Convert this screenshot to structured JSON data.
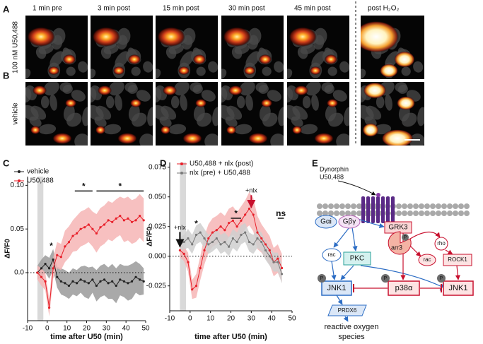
{
  "micrographs": {
    "columns": [
      "1 min pre",
      "3 min post",
      "15 min post",
      "30 min post",
      "45 min post",
      "post H₂O₂"
    ],
    "rows": [
      {
        "panel": "A",
        "label": "100 nM U50,488"
      },
      {
        "panel": "B",
        "label": "vehicle"
      }
    ]
  },
  "chart_data": [
    {
      "type": "line",
      "panel": "C",
      "xlabel": "time after U50 (min)",
      "ylabel": "ΔF/F0",
      "x": [
        -5,
        -3,
        -1,
        1,
        3,
        5,
        7,
        9,
        11,
        13,
        15,
        17,
        19,
        21,
        23,
        25,
        27,
        29,
        31,
        33,
        35,
        37,
        39,
        41,
        43,
        45,
        47,
        49
      ],
      "series": [
        {
          "name": "vehicle",
          "color": "#222222",
          "band_color": "#9a9a9a",
          "values": [
            0.0,
            0.005,
            0.01,
            0.005,
            0.015,
            -0.005,
            -0.01,
            -0.012,
            -0.015,
            -0.01,
            -0.012,
            -0.008,
            -0.01,
            -0.012,
            -0.008,
            -0.015,
            -0.01,
            -0.008,
            -0.012,
            -0.01,
            -0.015,
            -0.008,
            -0.01,
            -0.012,
            -0.01,
            -0.005,
            -0.008,
            -0.01
          ],
          "errors": [
            0.008,
            0.01,
            0.01,
            0.012,
            0.012,
            0.012,
            0.015,
            0.015,
            0.015,
            0.015,
            0.015,
            0.015,
            0.018,
            0.018,
            0.015,
            0.018,
            0.018,
            0.018,
            0.018,
            0.02,
            0.02,
            0.018,
            0.018,
            0.02,
            0.02,
            0.018,
            0.018,
            0.015
          ]
        },
        {
          "name": "U50,488",
          "color": "#e8202a",
          "band_color": "#f6b5b5",
          "values": [
            0.0,
            -0.005,
            -0.01,
            -0.04,
            0.005,
            0.02,
            0.018,
            0.03,
            0.035,
            0.042,
            0.045,
            0.05,
            0.052,
            0.055,
            0.05,
            0.045,
            0.052,
            0.055,
            0.06,
            0.058,
            0.062,
            0.065,
            0.06,
            0.062,
            0.058,
            0.06,
            0.065,
            0.06
          ],
          "errors": [
            0.008,
            0.01,
            0.01,
            0.01,
            0.012,
            0.015,
            0.015,
            0.018,
            0.018,
            0.018,
            0.02,
            0.02,
            0.02,
            0.02,
            0.02,
            0.022,
            0.022,
            0.022,
            0.022,
            0.022,
            0.022,
            0.022,
            0.025,
            0.025,
            0.025,
            0.025,
            0.025,
            0.025
          ]
        }
      ],
      "xlim": [
        -10,
        50
      ],
      "xticks": [
        -10,
        0,
        10,
        20,
        30,
        40,
        50
      ],
      "ylim": [
        -0.055,
        0.11
      ],
      "yticks": [
        {
          "value": 0.1,
          "label": "0.10"
        },
        0.05,
        {
          "value": 0,
          "label": "0.0"
        }
      ],
      "reference_line": 0,
      "shade": [
        -5,
        -2
      ],
      "legend": "top-left",
      "annotations": [
        {
          "text": "*",
          "x": 2,
          "y": 0.03
        },
        {
          "text": "*",
          "x_range": [
            14,
            23
          ],
          "y": 0.0935
        },
        {
          "text": "*",
          "x_range": [
            25,
            49
          ],
          "y": 0.0935
        }
      ]
    },
    {
      "type": "line",
      "panel": "D",
      "xlabel": "time after U50 (min)",
      "ylabel": "ΔF/F0",
      "x": [
        -5,
        -3,
        -1,
        1,
        3,
        5,
        7,
        9,
        11,
        13,
        15,
        17,
        19,
        21,
        23,
        25,
        27,
        29,
        31,
        33,
        35,
        37,
        39,
        41,
        43,
        45
      ],
      "series": [
        {
          "name": "U50,488 + nlx (post)",
          "color": "#e8202a",
          "band_color": "#f6b5b5",
          "values": [
            0.005,
            0.002,
            -0.005,
            -0.028,
            -0.025,
            -0.01,
            0.005,
            0.015,
            0.02,
            0.022,
            0.025,
            0.022,
            0.028,
            0.03,
            0.025,
            0.03,
            0.035,
            0.04,
            0.035,
            0.02,
            0.015,
            0.01,
            0.005,
            -0.005,
            -0.002,
            -0.01
          ],
          "errors": [
            0.006,
            0.006,
            0.008,
            0.008,
            0.01,
            0.01,
            0.012,
            0.012,
            0.012,
            0.012,
            0.012,
            0.012,
            0.012,
            0.012,
            0.012,
            0.012,
            0.012,
            0.014,
            0.014,
            0.014,
            0.012,
            0.012,
            0.012,
            0.012,
            0.012,
            0.012
          ]
        },
        {
          "name": "nlx (pre) + U50,488",
          "color": "#7a7a7a",
          "band_color": "#cfcfcf",
          "values": [
            0.01,
            0.012,
            0.015,
            0.01,
            0.018,
            0.02,
            0.015,
            0.01,
            0.012,
            0.015,
            0.01,
            0.012,
            0.008,
            0.015,
            0.012,
            0.018,
            0.02,
            0.012,
            0.01,
            0.015,
            0.012,
            0.005,
            0.0,
            -0.005,
            -0.005,
            -0.015
          ],
          "errors": [
            0.006,
            0.006,
            0.008,
            0.008,
            0.008,
            0.008,
            0.008,
            0.008,
            0.008,
            0.008,
            0.008,
            0.008,
            0.008,
            0.008,
            0.008,
            0.008,
            0.008,
            0.008,
            0.008,
            0.008,
            0.008,
            0.008,
            0.008,
            0.008,
            0.008,
            0.008
          ]
        }
      ],
      "xlim": [
        -10,
        50
      ],
      "xticks": [
        -10,
        0,
        10,
        20,
        30,
        40,
        50
      ],
      "ylim": [
        -0.046,
        0.079
      ],
      "yticks": [
        0.075,
        {
          "value": 0.05,
          "label": "0.050"
        },
        0.025,
        {
          "value": 0,
          "label": "0.000"
        },
        -0.025
      ],
      "reference_line": 0,
      "shade": [
        -5,
        -2
      ],
      "legend": "top",
      "annotations": [
        {
          "text": "+nlx",
          "x": -5,
          "y": 0.024,
          "arrow_to": 0.008,
          "color": "#000000"
        },
        {
          "text": "+nlx",
          "x": 30,
          "y": 0.055,
          "arrow_to": 0.041,
          "color": "#c8102e"
        },
        {
          "text": "*",
          "x": 3,
          "y": 0.027
        },
        {
          "text": "*",
          "x_range": [
            20,
            25
          ],
          "y": 0.032
        },
        {
          "text": "ns",
          "x_range": [
            43,
            46
          ],
          "y": 0.032
        }
      ]
    }
  ],
  "diagram": {
    "panel": "E",
    "nodes": [
      "Dynorphin",
      "U50,488",
      "Gαi",
      "Gβγ",
      "GRK3",
      "arr3",
      "P",
      "rho",
      "rac",
      "ROCK1",
      "rac",
      "PKC",
      "P",
      "JNK1",
      "P",
      "p38α",
      "P",
      "JNK1",
      "PRDX6",
      "reactive oxygen",
      "species"
    ]
  }
}
